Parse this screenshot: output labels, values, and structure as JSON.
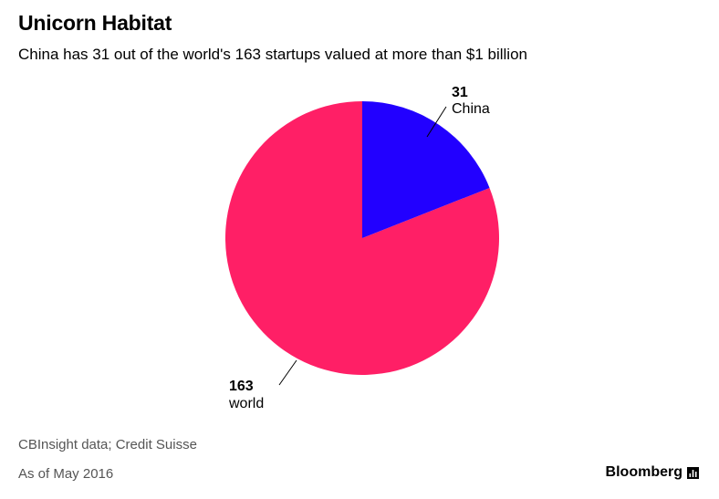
{
  "title": "Unicorn Habitat",
  "subtitle": "China has 31 out of the world's 163 startups valued at more than $1 billion",
  "footer": {
    "source": "CBInsight data; Credit Suisse",
    "as_of": "As of May 2016",
    "brand": "Bloomberg"
  },
  "colors": {
    "china": "#2200ff",
    "world": "#ff1f66"
  },
  "chart_data": {
    "type": "pie",
    "title": "Unicorn Habitat",
    "subtitle": "China has 31 out of the world's 163 startups valued at more than $1 billion",
    "total": 163,
    "slices": [
      {
        "label": "China",
        "value": 31,
        "value_label": "31",
        "color": "#2200ff"
      },
      {
        "label": "world",
        "value": 163,
        "value_label": "163",
        "color": "#ff1f66"
      }
    ],
    "legend": "none"
  }
}
